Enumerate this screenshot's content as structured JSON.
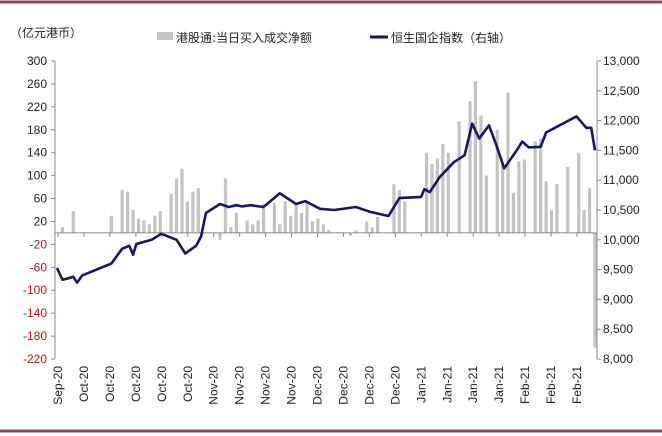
{
  "chart_data": {
    "type": "bar+line",
    "unit_label": "（亿元港币）",
    "legend": [
      "港股通:当日买入成交净额",
      "恒生国企指数（右轴）"
    ],
    "legend_placement": "top",
    "colors": {
      "bar": "#c3c3c3",
      "line": "#16166b",
      "negative_tick": "#c0141b",
      "frame": "#8b4a5a"
    },
    "left_axis": {
      "range": [
        -220,
        300
      ],
      "ticks": [
        "300",
        "260",
        "220",
        "180",
        "140",
        "100",
        "60",
        "20",
        "-20",
        "-60",
        "-100",
        "-140",
        "-180",
        "-220"
      ]
    },
    "right_axis": {
      "range": [
        8000,
        13000
      ],
      "ticks": [
        "13,000",
        "12,500",
        "12,000",
        "11,500",
        "11,000",
        "10,500",
        "10,000",
        "9,500",
        "9,000",
        "8,500",
        "8,000"
      ]
    },
    "x_tick_labels": [
      "Sep-20",
      "Oct-20",
      "Oct-20",
      "Oct-20",
      "Oct-20",
      "Oct-20",
      "Nov-20",
      "Nov-20",
      "Nov-20",
      "Nov-20",
      "Dec-20",
      "Dec-20",
      "Dec-20",
      "Dec-20",
      "Jan-21",
      "Jan-21",
      "Jan-21",
      "Jan-21",
      "Feb-21",
      "Feb-21",
      "Feb-21"
    ],
    "x_range_trading_days": [
      0,
      99
    ],
    "bars": [
      0,
      10,
      0,
      38,
      0,
      0,
      0,
      0,
      0,
      0,
      30,
      0,
      75,
      72,
      40,
      25,
      22,
      15,
      30,
      38,
      0,
      68,
      95,
      112,
      55,
      72,
      78,
      -2,
      0,
      0,
      -12,
      95,
      10,
      35,
      0,
      22,
      15,
      22,
      50,
      0,
      52,
      15,
      55,
      30,
      50,
      35,
      55,
      20,
      25,
      15,
      5,
      0,
      0,
      0,
      -5,
      5,
      0,
      20,
      10,
      28,
      0,
      0,
      85,
      75,
      55,
      0,
      0,
      0,
      140,
      120,
      130,
      155,
      140,
      0,
      195,
      0,
      230,
      265,
      205,
      100,
      0,
      180,
      120,
      245,
      70,
      125,
      128,
      0,
      160,
      165,
      90,
      40,
      85,
      0,
      115,
      0,
      140,
      40,
      78,
      -200
    ],
    "line_points": [
      [
        0,
        9527
      ],
      [
        1,
        9330
      ],
      [
        2,
        9350
      ],
      [
        3,
        9380
      ],
      [
        3.7,
        9280
      ],
      [
        4.6,
        9400
      ],
      [
        10,
        9600
      ],
      [
        12,
        9850
      ],
      [
        13.3,
        9900
      ],
      [
        14,
        9750
      ],
      [
        14.6,
        9930
      ],
      [
        17.4,
        10000
      ],
      [
        19.2,
        10100
      ],
      [
        22,
        10000
      ],
      [
        23.6,
        9770
      ],
      [
        25.6,
        9900
      ],
      [
        26.5,
        10050
      ],
      [
        27.4,
        10450
      ],
      [
        30,
        10600
      ],
      [
        31.6,
        10550
      ],
      [
        33,
        10580
      ],
      [
        34,
        10560
      ],
      [
        35.6,
        10580
      ],
      [
        38,
        10550
      ],
      [
        41,
        10780
      ],
      [
        44,
        10600
      ],
      [
        45.7,
        10650
      ],
      [
        48.4,
        10520
      ],
      [
        51,
        10500
      ],
      [
        55,
        10550
      ],
      [
        57.6,
        10470
      ],
      [
        61,
        10400
      ],
      [
        63,
        10700
      ],
      [
        67,
        10720
      ],
      [
        67.6,
        10850
      ],
      [
        68.6,
        10800
      ],
      [
        70.4,
        11050
      ],
      [
        73,
        11300
      ],
      [
        75,
        11420
      ],
      [
        76.4,
        11950
      ],
      [
        77.7,
        11700
      ],
      [
        79.5,
        11920
      ],
      [
        80.8,
        11600
      ],
      [
        82.3,
        11200
      ],
      [
        84.6,
        11500
      ],
      [
        85.6,
        11650
      ],
      [
        86.8,
        11550
      ],
      [
        89,
        11560
      ],
      [
        90,
        11800
      ],
      [
        95.6,
        12070
      ],
      [
        97.4,
        11880
      ],
      [
        98.3,
        11880
      ],
      [
        99,
        11500
      ]
    ]
  }
}
